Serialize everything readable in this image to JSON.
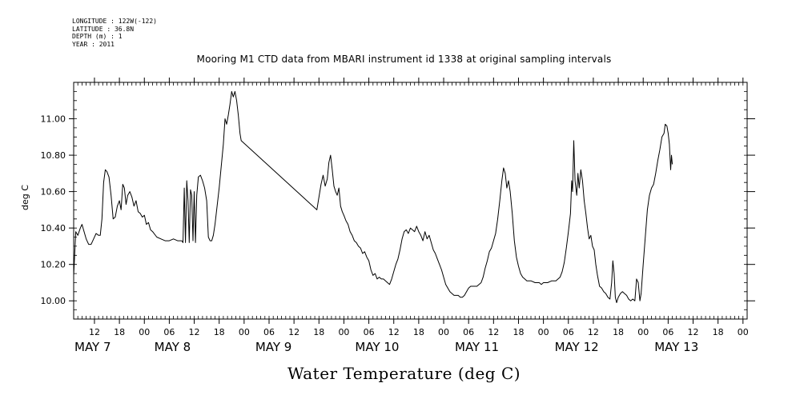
{
  "meta": {
    "longitude": "LONGITUDE : 122W(-122)",
    "latitude": "LATITUDE : 36.8N",
    "depth": "DEPTH (m) : 1",
    "year": "YEAR : 2011"
  },
  "chart_data": {
    "type": "line",
    "title": "Mooring M1 CTD data from MBARI instrument id 1338 at original sampling intervals",
    "xlabel": "Water Temperature (deg C)",
    "ylabel": "deg C",
    "x_unit": "hours since 2011-05-07 00:00",
    "xlim": [
      7,
      169
    ],
    "ylim": [
      9.9,
      11.2
    ],
    "yticks": [
      10.0,
      10.2,
      10.4,
      10.6,
      10.8,
      11.0
    ],
    "ytick_labels": [
      "10.00",
      "10.20",
      "10.40",
      "10.60",
      "10.80",
      "11.00"
    ],
    "xtick_hours": [
      12,
      18,
      24,
      30,
      36,
      42,
      48,
      54,
      60,
      66,
      72,
      78,
      84,
      90,
      96,
      102,
      108,
      114,
      120,
      126,
      132,
      138,
      144,
      150,
      156,
      162,
      168
    ],
    "xtick_labels": [
      "12",
      "18",
      "00",
      "06",
      "12",
      "18",
      "00",
      "06",
      "12",
      "18",
      "00",
      "06",
      "12",
      "18",
      "00",
      "06",
      "12",
      "18",
      "00",
      "06",
      "12",
      "18",
      "00",
      "06",
      "12",
      "18",
      "00"
    ],
    "day_labels": [
      {
        "hour": 7.0,
        "label": "MAY  7"
      },
      {
        "hour": 26.2,
        "label": "MAY  8"
      },
      {
        "hour": 50.5,
        "label": "MAY  9"
      },
      {
        "hour": 74.5,
        "label": "MAY 10"
      },
      {
        "hour": 98.5,
        "label": "MAY 11"
      },
      {
        "hour": 122.5,
        "label": "MAY 12"
      },
      {
        "hour": 146.5,
        "label": "MAY 13"
      }
    ],
    "grid": false,
    "series": [
      {
        "points": [
          [
            7.0,
            10.14
          ],
          [
            7.5,
            10.38
          ],
          [
            8.0,
            10.36
          ],
          [
            8.6,
            10.4
          ],
          [
            9.0,
            10.42
          ],
          [
            9.5,
            10.38
          ],
          [
            10.0,
            10.34
          ],
          [
            10.6,
            10.31
          ],
          [
            11.2,
            10.31
          ],
          [
            11.8,
            10.34
          ],
          [
            12.4,
            10.37
          ],
          [
            13.0,
            10.36
          ],
          [
            13.4,
            10.36
          ],
          [
            13.8,
            10.45
          ],
          [
            14.2,
            10.65
          ],
          [
            14.6,
            10.72
          ],
          [
            15.0,
            10.71
          ],
          [
            15.5,
            10.68
          ],
          [
            16.0,
            10.58
          ],
          [
            16.5,
            10.45
          ],
          [
            17.0,
            10.46
          ],
          [
            17.5,
            10.52
          ],
          [
            18.0,
            10.55
          ],
          [
            18.4,
            10.5
          ],
          [
            18.8,
            10.64
          ],
          [
            19.2,
            10.62
          ],
          [
            19.6,
            10.53
          ],
          [
            20.0,
            10.58
          ],
          [
            20.5,
            10.6
          ],
          [
            21.0,
            10.57
          ],
          [
            21.5,
            10.52
          ],
          [
            22.0,
            10.55
          ],
          [
            22.5,
            10.49
          ],
          [
            23.0,
            10.48
          ],
          [
            23.5,
            10.46
          ],
          [
            24.0,
            10.47
          ],
          [
            24.5,
            10.42
          ],
          [
            25.0,
            10.43
          ],
          [
            25.5,
            10.39
          ],
          [
            26.0,
            10.38
          ],
          [
            27.0,
            10.35
          ],
          [
            28.0,
            10.34
          ],
          [
            29.0,
            10.33
          ],
          [
            30.0,
            10.33
          ],
          [
            31.0,
            10.34
          ],
          [
            32.0,
            10.33
          ],
          [
            33.0,
            10.33
          ],
          [
            33.3,
            10.32
          ],
          [
            33.6,
            10.62
          ],
          [
            33.9,
            10.32
          ],
          [
            34.2,
            10.66
          ],
          [
            34.5,
            10.55
          ],
          [
            34.8,
            10.32
          ],
          [
            35.1,
            10.61
          ],
          [
            35.4,
            10.58
          ],
          [
            35.7,
            10.33
          ],
          [
            36.0,
            10.6
          ],
          [
            36.3,
            10.32
          ],
          [
            36.6,
            10.58
          ],
          [
            37.0,
            10.68
          ],
          [
            37.5,
            10.69
          ],
          [
            38.0,
            10.66
          ],
          [
            38.5,
            10.62
          ],
          [
            39.0,
            10.55
          ],
          [
            39.4,
            10.35
          ],
          [
            39.8,
            10.33
          ],
          [
            40.2,
            10.33
          ],
          [
            40.6,
            10.36
          ],
          [
            41.0,
            10.42
          ],
          [
            41.5,
            10.52
          ],
          [
            42.0,
            10.62
          ],
          [
            42.5,
            10.74
          ],
          [
            43.0,
            10.86
          ],
          [
            43.4,
            11.0
          ],
          [
            43.8,
            10.97
          ],
          [
            44.2,
            11.02
          ],
          [
            44.6,
            11.08
          ],
          [
            45.0,
            11.15
          ],
          [
            45.4,
            11.12
          ],
          [
            45.8,
            11.15
          ],
          [
            46.2,
            11.1
          ],
          [
            46.6,
            11.02
          ],
          [
            47.0,
            10.92
          ],
          [
            47.3,
            10.88
          ],
          [
            65.5,
            10.5
          ],
          [
            66.0,
            10.57
          ],
          [
            66.5,
            10.64
          ],
          [
            67.0,
            10.69
          ],
          [
            67.5,
            10.63
          ],
          [
            68.0,
            10.67
          ],
          [
            68.4,
            10.76
          ],
          [
            68.8,
            10.8
          ],
          [
            69.2,
            10.72
          ],
          [
            69.6,
            10.63
          ],
          [
            70.0,
            10.6
          ],
          [
            70.4,
            10.58
          ],
          [
            70.8,
            10.62
          ],
          [
            71.2,
            10.52
          ],
          [
            71.6,
            10.49
          ],
          [
            72.0,
            10.47
          ],
          [
            72.5,
            10.44
          ],
          [
            73.0,
            10.42
          ],
          [
            73.5,
            10.38
          ],
          [
            74.0,
            10.36
          ],
          [
            74.5,
            10.33
          ],
          [
            75.0,
            10.32
          ],
          [
            75.5,
            10.3
          ],
          [
            76.0,
            10.29
          ],
          [
            76.5,
            10.26
          ],
          [
            77.0,
            10.27
          ],
          [
            77.5,
            10.24
          ],
          [
            78.0,
            10.22
          ],
          [
            78.5,
            10.17
          ],
          [
            79.0,
            10.14
          ],
          [
            79.5,
            10.15
          ],
          [
            80.0,
            10.12
          ],
          [
            80.5,
            10.13
          ],
          [
            81.0,
            10.12
          ],
          [
            81.5,
            10.12
          ],
          [
            82.0,
            10.11
          ],
          [
            82.5,
            10.1
          ],
          [
            83.0,
            10.09
          ],
          [
            83.5,
            10.12
          ],
          [
            84.0,
            10.16
          ],
          [
            84.5,
            10.2
          ],
          [
            85.0,
            10.23
          ],
          [
            85.5,
            10.28
          ],
          [
            86.0,
            10.34
          ],
          [
            86.5,
            10.38
          ],
          [
            87.0,
            10.39
          ],
          [
            87.5,
            10.37
          ],
          [
            88.0,
            10.4
          ],
          [
            88.5,
            10.39
          ],
          [
            89.0,
            10.38
          ],
          [
            89.5,
            10.41
          ],
          [
            90.0,
            10.38
          ],
          [
            90.5,
            10.36
          ],
          [
            91.0,
            10.33
          ],
          [
            91.5,
            10.38
          ],
          [
            92.0,
            10.34
          ],
          [
            92.5,
            10.36
          ],
          [
            93.0,
            10.32
          ],
          [
            93.5,
            10.28
          ],
          [
            94.0,
            10.26
          ],
          [
            94.5,
            10.23
          ],
          [
            95.0,
            10.2
          ],
          [
            95.5,
            10.17
          ],
          [
            96.0,
            10.13
          ],
          [
            96.5,
            10.09
          ],
          [
            97.0,
            10.07
          ],
          [
            97.5,
            10.05
          ],
          [
            98.0,
            10.04
          ],
          [
            98.5,
            10.03
          ],
          [
            99.0,
            10.03
          ],
          [
            99.5,
            10.03
          ],
          [
            100.0,
            10.02
          ],
          [
            100.5,
            10.02
          ],
          [
            101.0,
            10.03
          ],
          [
            101.5,
            10.05
          ],
          [
            102.0,
            10.07
          ],
          [
            102.5,
            10.08
          ],
          [
            103.0,
            10.08
          ],
          [
            103.5,
            10.08
          ],
          [
            104.0,
            10.08
          ],
          [
            104.5,
            10.09
          ],
          [
            105.0,
            10.1
          ],
          [
            105.5,
            10.13
          ],
          [
            106.0,
            10.18
          ],
          [
            106.5,
            10.22
          ],
          [
            107.0,
            10.27
          ],
          [
            107.5,
            10.29
          ],
          [
            108.0,
            10.33
          ],
          [
            108.5,
            10.37
          ],
          [
            109.0,
            10.45
          ],
          [
            109.5,
            10.55
          ],
          [
            110.0,
            10.66
          ],
          [
            110.4,
            10.73
          ],
          [
            110.8,
            10.7
          ],
          [
            111.2,
            10.62
          ],
          [
            111.6,
            10.66
          ],
          [
            112.0,
            10.6
          ],
          [
            112.5,
            10.48
          ],
          [
            113.0,
            10.33
          ],
          [
            113.5,
            10.24
          ],
          [
            114.0,
            10.19
          ],
          [
            114.5,
            10.15
          ],
          [
            115.0,
            10.13
          ],
          [
            115.5,
            10.12
          ],
          [
            116.0,
            10.11
          ],
          [
            117.0,
            10.11
          ],
          [
            118.0,
            10.1
          ],
          [
            119.0,
            10.1
          ],
          [
            119.5,
            10.09
          ],
          [
            120.0,
            10.1
          ],
          [
            121.0,
            10.1
          ],
          [
            122.0,
            10.11
          ],
          [
            123.0,
            10.11
          ],
          [
            124.0,
            10.13
          ],
          [
            124.5,
            10.16
          ],
          [
            125.0,
            10.21
          ],
          [
            125.5,
            10.29
          ],
          [
            126.0,
            10.38
          ],
          [
            126.5,
            10.48
          ],
          [
            126.8,
            10.66
          ],
          [
            127.0,
            10.6
          ],
          [
            127.3,
            10.88
          ],
          [
            127.6,
            10.66
          ],
          [
            128.0,
            10.58
          ],
          [
            128.3,
            10.7
          ],
          [
            128.6,
            10.62
          ],
          [
            129.0,
            10.72
          ],
          [
            129.4,
            10.66
          ],
          [
            129.8,
            10.55
          ],
          [
            130.2,
            10.48
          ],
          [
            130.6,
            10.4
          ],
          [
            131.0,
            10.34
          ],
          [
            131.4,
            10.36
          ],
          [
            131.8,
            10.3
          ],
          [
            132.2,
            10.28
          ],
          [
            132.6,
            10.2
          ],
          [
            133.0,
            10.14
          ],
          [
            133.5,
            10.08
          ],
          [
            134.0,
            10.07
          ],
          [
            134.5,
            10.05
          ],
          [
            135.0,
            10.04
          ],
          [
            135.5,
            10.02
          ],
          [
            136.0,
            10.01
          ],
          [
            136.4,
            10.1
          ],
          [
            136.7,
            10.22
          ],
          [
            137.0,
            10.15
          ],
          [
            137.3,
            10.02
          ],
          [
            137.6,
            9.99
          ],
          [
            138.0,
            10.02
          ],
          [
            138.5,
            10.04
          ],
          [
            139.0,
            10.05
          ],
          [
            139.5,
            10.04
          ],
          [
            140.0,
            10.03
          ],
          [
            140.5,
            10.01
          ],
          [
            141.0,
            10.0
          ],
          [
            141.5,
            10.01
          ],
          [
            142.0,
            10.0
          ],
          [
            142.4,
            10.12
          ],
          [
            142.8,
            10.1
          ],
          [
            143.2,
            10.0
          ],
          [
            143.5,
            10.04
          ],
          [
            144.0,
            10.2
          ],
          [
            144.5,
            10.35
          ],
          [
            145.0,
            10.5
          ],
          [
            145.5,
            10.58
          ],
          [
            146.0,
            10.62
          ],
          [
            146.5,
            10.64
          ],
          [
            147.0,
            10.7
          ],
          [
            147.5,
            10.77
          ],
          [
            148.0,
            10.83
          ],
          [
            148.5,
            10.9
          ],
          [
            149.0,
            10.92
          ],
          [
            149.3,
            10.97
          ],
          [
            149.7,
            10.96
          ],
          [
            150.0,
            10.92
          ],
          [
            150.3,
            10.86
          ],
          [
            150.6,
            10.72
          ],
          [
            150.8,
            10.8
          ],
          [
            151.0,
            10.75
          ]
        ]
      }
    ]
  }
}
